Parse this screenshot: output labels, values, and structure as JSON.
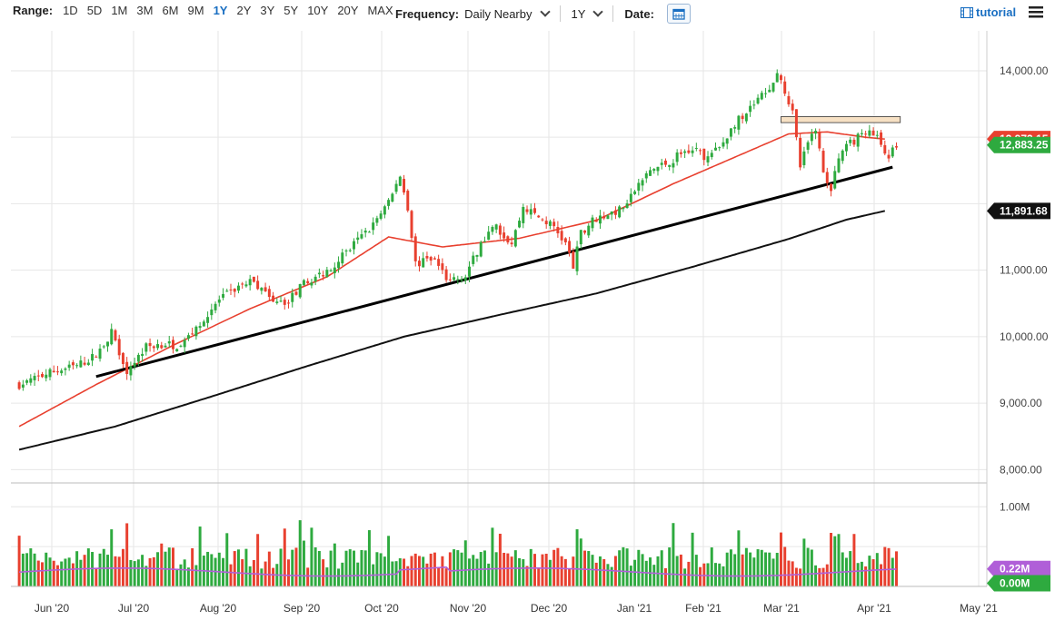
{
  "toolbar": {
    "range_label": "Range:",
    "ranges": [
      "1D",
      "5D",
      "1M",
      "3M",
      "6M",
      "9M",
      "1Y",
      "2Y",
      "3Y",
      "5Y",
      "10Y",
      "20Y",
      "MAX"
    ],
    "active_range": "1Y",
    "frequency_label": "Frequency:",
    "frequency_value": "Daily Nearby",
    "period_value": "1Y",
    "date_label": "Date:",
    "tutorial_label": "tutorial"
  },
  "colors": {
    "up": "#2eaa3f",
    "down": "#e8402f",
    "ma_short": "#e8402f",
    "ma_long": "#111111",
    "trendline": "#000000",
    "resistance_box": "#f7e1c4",
    "volume_avg": "#b05fd8",
    "price_tag_green": "#2eaa3f",
    "price_tag_red": "#e8402f",
    "price_tag_black": "#111111",
    "volume_tag_purple": "#b05fd8",
    "volume_tag_green": "#2eaa3f",
    "grid": "#e6e6e6"
  },
  "chart_data": {
    "type": "candlestick",
    "x_ticks": [
      "Jun '20",
      "Jul '20",
      "Aug '20",
      "Sep '20",
      "Oct '20",
      "Nov '20",
      "Dec '20",
      "Jan '21",
      "Feb '21",
      "Mar '21",
      "Apr '21",
      "May '21"
    ],
    "price_axis": {
      "ylim": [
        7800,
        14600
      ],
      "ticks": [
        "8,000.00",
        "9,000.00",
        "10,000.00",
        "11,000.00",
        "14,000.00"
      ]
    },
    "volume_axis": {
      "ylim": [
        0,
        1.3
      ],
      "ticks": [
        "1.00M"
      ]
    },
    "grid": true,
    "last_price": "12,883.25",
    "long_ma_value": "11,891.68",
    "short_ma_value": "12,973.15",
    "volume_avg_value": "0.22M",
    "volume_last_value": "0.00M",
    "price_path": [
      [
        0,
        9280
      ],
      [
        8,
        9460
      ],
      [
        15,
        9560
      ],
      [
        20,
        9720
      ],
      [
        24,
        10060
      ],
      [
        28,
        9500
      ],
      [
        33,
        9850
      ],
      [
        38,
        9900
      ],
      [
        42,
        9850
      ],
      [
        46,
        10150
      ],
      [
        52,
        10550
      ],
      [
        57,
        10750
      ],
      [
        61,
        10850
      ],
      [
        66,
        10500
      ],
      [
        70,
        10550
      ],
      [
        75,
        10850
      ],
      [
        79,
        10950
      ],
      [
        84,
        11200
      ],
      [
        88,
        11450
      ],
      [
        92,
        11700
      ],
      [
        96,
        12000
      ],
      [
        99,
        12420
      ],
      [
        101,
        11950
      ],
      [
        103,
        11100
      ],
      [
        108,
        11150
      ],
      [
        112,
        10800
      ],
      [
        116,
        10950
      ],
      [
        120,
        11400
      ],
      [
        124,
        11650
      ],
      [
        128,
        11400
      ],
      [
        131,
        11950
      ],
      [
        135,
        11800
      ],
      [
        139,
        11650
      ],
      [
        142,
        11400
      ],
      [
        144,
        11050
      ],
      [
        146,
        11550
      ],
      [
        149,
        11750
      ],
      [
        153,
        11850
      ],
      [
        156,
        11900
      ],
      [
        160,
        12200
      ],
      [
        164,
        12500
      ],
      [
        168,
        12600
      ],
      [
        172,
        12750
      ],
      [
        176,
        12900
      ],
      [
        178,
        12650
      ],
      [
        182,
        12850
      ],
      [
        186,
        13200
      ],
      [
        190,
        13450
      ],
      [
        194,
        13700
      ],
      [
        197,
        13900
      ],
      [
        199,
        13700
      ],
      [
        201,
        13350
      ],
      [
        203,
        12550
      ],
      [
        205,
        12900
      ],
      [
        207,
        13150
      ],
      [
        209,
        12450
      ],
      [
        211,
        12250
      ],
      [
        214,
        12800
      ],
      [
        217,
        12950
      ],
      [
        220,
        13100
      ],
      [
        223,
        12980
      ],
      [
        226,
        12720
      ],
      [
        228,
        12883
      ]
    ],
    "ma_short_path": [
      [
        0,
        8650
      ],
      [
        20,
        9280
      ],
      [
        40,
        9870
      ],
      [
        60,
        10420
      ],
      [
        80,
        10900
      ],
      [
        96,
        11500
      ],
      [
        110,
        11350
      ],
      [
        130,
        11480
      ],
      [
        150,
        11750
      ],
      [
        170,
        12300
      ],
      [
        190,
        12800
      ],
      [
        200,
        13050
      ],
      [
        210,
        13080
      ],
      [
        220,
        13000
      ],
      [
        225,
        12973
      ]
    ],
    "ma_long_path": [
      [
        0,
        8300
      ],
      [
        25,
        8650
      ],
      [
        50,
        9100
      ],
      [
        75,
        9560
      ],
      [
        100,
        10000
      ],
      [
        125,
        10330
      ],
      [
        150,
        10650
      ],
      [
        175,
        11050
      ],
      [
        200,
        11470
      ],
      [
        215,
        11760
      ],
      [
        225,
        11892
      ]
    ],
    "trendline": [
      [
        20,
        9400
      ],
      [
        227,
        12550
      ]
    ],
    "resistance_zone": {
      "x_start": 198,
      "x_end": 229,
      "y_low": 13220,
      "y_high": 13310
    }
  }
}
